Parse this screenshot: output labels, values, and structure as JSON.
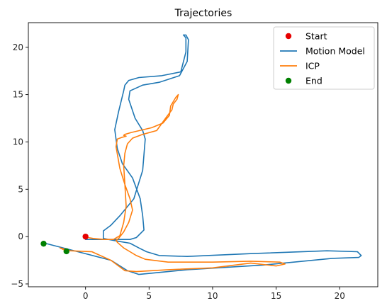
{
  "chart_data": {
    "type": "line",
    "title": "Trajectories",
    "xlabel": "",
    "ylabel": "",
    "xlim": [
      -4.5,
      23.0
    ],
    "ylim": [
      -5.3,
      22.6
    ],
    "xticks": [
      0,
      5,
      10,
      15,
      20
    ],
    "yticks": [
      -5,
      0,
      5,
      10,
      15,
      20
    ],
    "grid": false,
    "legend_position": "top-right",
    "series": [
      {
        "name": "Start",
        "kind": "scatter",
        "color": "#e60000",
        "x": [
          0.0
        ],
        "y": [
          0.0
        ]
      },
      {
        "name": "Motion Model",
        "kind": "line",
        "color": "#1f77b4",
        "x": [
          0.0,
          1.5,
          3.5,
          4.0,
          4.6,
          4.5,
          4.3,
          3.7,
          2.9,
          2.5,
          2.3,
          2.6,
          3.0,
          3.1,
          3.4,
          4.2,
          6.0,
          7.5,
          7.9,
          7.9,
          7.7,
          7.9,
          8.1,
          8.0,
          7.4,
          5.8,
          4.5,
          3.5,
          3.4,
          3.9,
          4.5,
          4.7,
          4.5,
          3.8,
          2.7,
          2.0,
          1.4,
          1.4,
          2.6,
          3.5,
          4.2,
          4.8,
          5.8,
          8.0,
          13.0,
          19.0,
          21.4,
          21.7,
          21.5,
          19.4,
          14.0,
          8.0,
          4.2,
          3.3,
          2.0,
          -3.2
        ],
        "y": [
          -0.3,
          -0.3,
          -0.3,
          -0.1,
          0.7,
          2.2,
          4.0,
          6.2,
          7.7,
          9.3,
          11.3,
          13.2,
          15.4,
          16.0,
          16.5,
          16.8,
          17.0,
          17.4,
          19.5,
          21.0,
          21.3,
          21.3,
          20.8,
          18.5,
          17.0,
          16.3,
          16.0,
          15.4,
          14.5,
          12.5,
          11.2,
          10.3,
          7.0,
          4.0,
          2.2,
          1.2,
          0.6,
          -0.2,
          -0.5,
          -0.7,
          -1.2,
          -1.6,
          -2.0,
          -2.1,
          -1.8,
          -1.5,
          -1.6,
          -2.0,
          -2.2,
          -2.3,
          -3.0,
          -3.5,
          -4.0,
          -3.6,
          -2.5,
          -0.7
        ]
      },
      {
        "name": "ICP",
        "kind": "line",
        "color": "#ff7f0e",
        "x": [
          0.2,
          0.6,
          1.5,
          2.2,
          2.7,
          3.0,
          3.2,
          3.1,
          2.7,
          2.4,
          2.5,
          2.9,
          3.2,
          3.0,
          3.1,
          3.6,
          5.2,
          6.1,
          6.6,
          6.7,
          7.1,
          7.3,
          7.2,
          6.9,
          6.8,
          6.3,
          5.6,
          4.5,
          3.7,
          3.3,
          3.1,
          3.0,
          3.1,
          3.5,
          3.7,
          3.4,
          3.0,
          2.6,
          2.4,
          2.5,
          3.0,
          3.5,
          4.0,
          4.7,
          6.5,
          10.0,
          13.0,
          15.3,
          15.7,
          15.0,
          13.0,
          10.0,
          6.5,
          4.0,
          3.1,
          2.0,
          0.5,
          -1.2,
          -2.0,
          -1.4
        ],
        "y": [
          -0.1,
          -0.2,
          -0.3,
          -0.3,
          0.1,
          1.5,
          3.2,
          5.5,
          7.2,
          9.5,
          10.3,
          10.5,
          10.6,
          10.7,
          10.8,
          11.0,
          11.5,
          12.0,
          12.8,
          13.8,
          14.7,
          15.0,
          14.5,
          14.0,
          13.4,
          12.5,
          11.2,
          10.8,
          10.4,
          9.8,
          8.8,
          7.5,
          5.5,
          4.0,
          2.8,
          1.5,
          0.5,
          -0.2,
          -0.4,
          -0.6,
          -1.2,
          -1.6,
          -2.0,
          -2.4,
          -2.7,
          -2.7,
          -2.6,
          -2.7,
          -2.9,
          -3.1,
          -2.8,
          -3.3,
          -3.5,
          -3.7,
          -3.6,
          -2.5,
          -1.6,
          -1.5,
          -1.2,
          -1.6
        ]
      },
      {
        "name": "End",
        "kind": "scatter",
        "color": "#008000",
        "x": [
          -3.3,
          -1.5
        ],
        "y": [
          -0.75,
          -1.55
        ]
      }
    ],
    "legend": [
      "Start",
      "Motion Model",
      "ICP",
      "End"
    ]
  }
}
